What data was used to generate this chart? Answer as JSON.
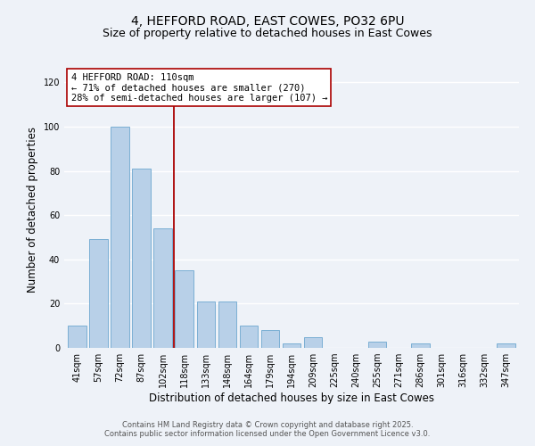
{
  "title": "4, HEFFORD ROAD, EAST COWES, PO32 6PU",
  "subtitle": "Size of property relative to detached houses in East Cowes",
  "xlabel": "Distribution of detached houses by size in East Cowes",
  "ylabel": "Number of detached properties",
  "categories": [
    "41sqm",
    "57sqm",
    "72sqm",
    "87sqm",
    "102sqm",
    "118sqm",
    "133sqm",
    "148sqm",
    "164sqm",
    "179sqm",
    "194sqm",
    "209sqm",
    "225sqm",
    "240sqm",
    "255sqm",
    "271sqm",
    "286sqm",
    "301sqm",
    "316sqm",
    "332sqm",
    "347sqm"
  ],
  "values": [
    10,
    49,
    100,
    81,
    54,
    35,
    21,
    21,
    10,
    8,
    2,
    5,
    0,
    0,
    3,
    0,
    2,
    0,
    0,
    0,
    2
  ],
  "bar_color": "#b8d0e8",
  "bar_edge_color": "#7bafd4",
  "reference_line_color": "#aa0000",
  "annotation_box_text": "4 HEFFORD ROAD: 110sqm\n← 71% of detached houses are smaller (270)\n28% of semi-detached houses are larger (107) →",
  "annotation_box_edge_color": "#aa0000",
  "ylim": [
    0,
    125
  ],
  "yticks": [
    0,
    20,
    40,
    60,
    80,
    100,
    120
  ],
  "footer1": "Contains HM Land Registry data © Crown copyright and database right 2025.",
  "footer2": "Contains public sector information licensed under the Open Government Licence v3.0.",
  "bg_color": "#eef2f8",
  "plot_bg_color": "#eef2f8",
  "grid_color": "#ffffff",
  "title_fontsize": 10,
  "subtitle_fontsize": 9,
  "axis_label_fontsize": 8.5,
  "tick_fontsize": 7,
  "annotation_fontsize": 7.5,
  "footer_fontsize": 6
}
